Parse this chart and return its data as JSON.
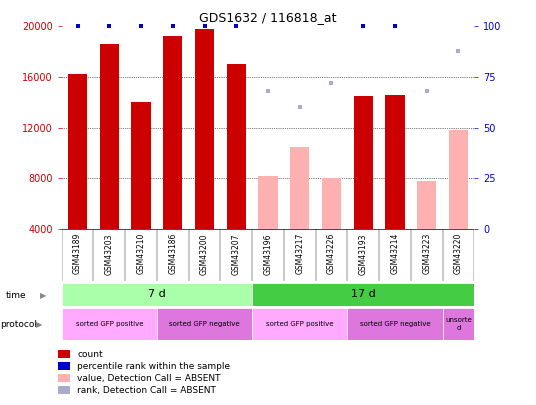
{
  "title": "GDS1632 / 116818_at",
  "samples": [
    "GSM43189",
    "GSM43203",
    "GSM43210",
    "GSM43186",
    "GSM43200",
    "GSM43207",
    "GSM43196",
    "GSM43217",
    "GSM43226",
    "GSM43193",
    "GSM43214",
    "GSM43223",
    "GSM43220"
  ],
  "bar_values": [
    16200,
    18600,
    14000,
    19200,
    19800,
    17000,
    null,
    null,
    null,
    14500,
    14600,
    null,
    null
  ],
  "bar_absent_values": [
    null,
    null,
    null,
    null,
    null,
    null,
    8200,
    10500,
    8000,
    null,
    null,
    7800,
    11800
  ],
  "rank_values": [
    100,
    100,
    100,
    100,
    100,
    100,
    null,
    null,
    null,
    100,
    100,
    null,
    null
  ],
  "rank_absent_values": [
    null,
    null,
    null,
    null,
    null,
    null,
    68,
    60,
    72,
    null,
    null,
    68,
    88
  ],
  "ylim_left": [
    4000,
    20000
  ],
  "ylim_right": [
    0,
    100
  ],
  "yticks_left": [
    4000,
    8000,
    12000,
    16000,
    20000
  ],
  "yticks_right": [
    0,
    25,
    50,
    75,
    100
  ],
  "bar_color_present": "#cc0000",
  "bar_color_absent": "#ffb0b0",
  "rank_color_present": "#0000cc",
  "rank_color_absent": "#aaaacc",
  "time_groups": [
    {
      "label": "7 d",
      "start": 0,
      "end": 6,
      "color": "#aaffaa"
    },
    {
      "label": "17 d",
      "start": 6,
      "end": 13,
      "color": "#44cc44"
    }
  ],
  "protocol_groups": [
    {
      "label": "sorted GFP positive",
      "start": 0,
      "end": 3,
      "color": "#ffaaff"
    },
    {
      "label": "sorted GFP negative",
      "start": 3,
      "end": 6,
      "color": "#dd77dd"
    },
    {
      "label": "sorted GFP positive",
      "start": 6,
      "end": 9,
      "color": "#ffaaff"
    },
    {
      "label": "sorted GFP negative",
      "start": 9,
      "end": 12,
      "color": "#dd77dd"
    },
    {
      "label": "unsorte\nd",
      "start": 12,
      "end": 13,
      "color": "#dd77dd"
    }
  ],
  "legend_items": [
    {
      "label": "count",
      "color": "#cc0000"
    },
    {
      "label": "percentile rank within the sample",
      "color": "#0000cc"
    },
    {
      "label": "value, Detection Call = ABSENT",
      "color": "#ffb0b0"
    },
    {
      "label": "rank, Detection Call = ABSENT",
      "color": "#aaaacc"
    }
  ],
  "background_color": "#ffffff",
  "tick_label_color_left": "#cc0000",
  "tick_label_color_right": "#0000cc"
}
